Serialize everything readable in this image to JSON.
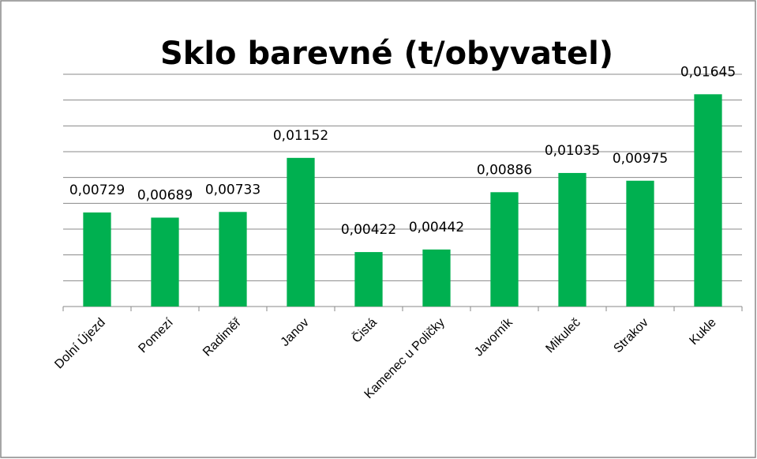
{
  "chart_data": {
    "type": "bar",
    "title": "Sklo barevné (t/obyvatel)",
    "categories": [
      "Dolní Újezd",
      "Pomezí",
      "Radiměř",
      "Janov",
      "Čistá",
      "Kamenec u Poličky",
      "Javorník",
      "Mikuleč",
      "Strakov",
      "Kukle"
    ],
    "values": [
      0.00729,
      0.00689,
      0.00733,
      0.01152,
      0.00422,
      0.00442,
      0.00886,
      0.01035,
      0.00975,
      0.01645
    ],
    "value_labels": [
      "0,00729",
      "0,00689",
      "0,00733",
      "0,01152",
      "0,00422",
      "0,00442",
      "0,00886",
      "0,01035",
      "0,00975",
      "0,01645"
    ],
    "color": "#00b050",
    "ylim": [
      0,
      0.018
    ],
    "yticks": [
      0,
      0.002,
      0.004,
      0.006,
      0.008,
      0.01,
      0.012,
      0.014,
      0.016,
      0.018
    ],
    "grid": true
  }
}
